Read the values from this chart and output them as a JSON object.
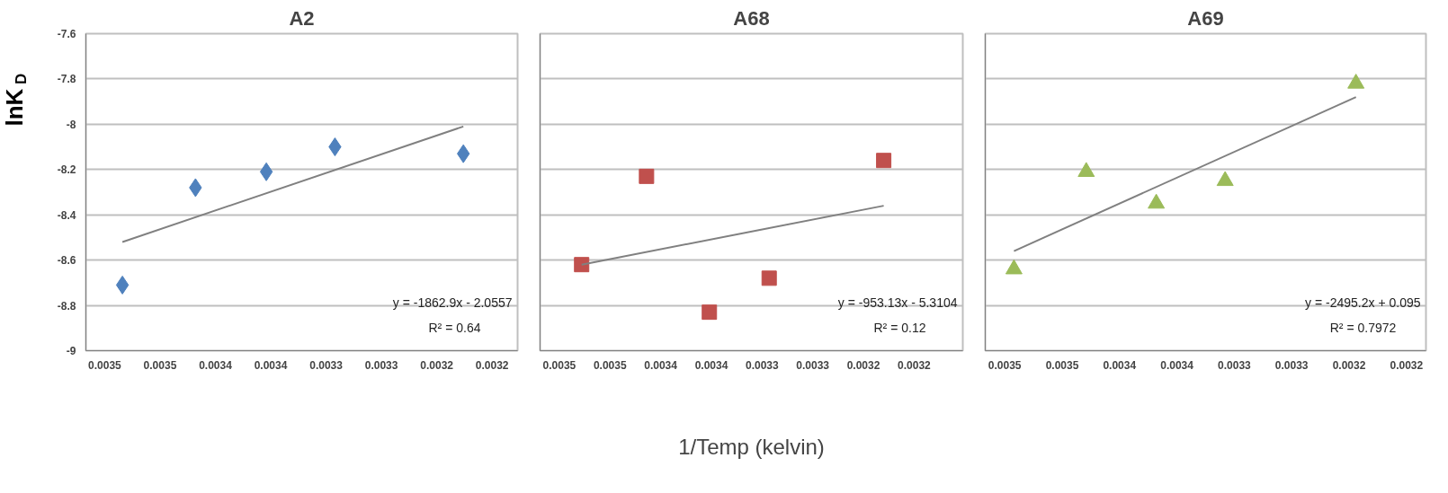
{
  "chart_data": [
    {
      "type": "scatter",
      "title": "A2",
      "ylabel": "lnK$_{D}$",
      "xlim": [
        0.003565,
        0.003175
      ],
      "ylim": [
        -9,
        -7.6
      ],
      "xticks": [
        {
          "value": 0.003548,
          "label": "0.0035"
        },
        {
          "value": 0.003498,
          "label": "0.0035"
        },
        {
          "value": 0.003448,
          "label": "0.0034"
        },
        {
          "value": 0.003398,
          "label": "0.0034"
        },
        {
          "value": 0.003348,
          "label": "0.0033"
        },
        {
          "value": 0.003298,
          "label": "0.0033"
        },
        {
          "value": 0.003248,
          "label": "0.0032"
        },
        {
          "value": 0.003198,
          "label": "0.0032"
        }
      ],
      "yticks": [
        -9,
        -8.8,
        -8.6,
        -8.4,
        -8.2,
        -8,
        -7.8,
        -7.6
      ],
      "grid": "y",
      "series": [
        {
          "marker": "diamond",
          "color": "#4f81bd",
          "x": [
            0.003532,
            0.003466,
            0.003402,
            0.00334,
            0.003224
          ],
          "values": [
            -8.71,
            -8.28,
            -8.21,
            -8.1,
            -8.13
          ]
        },
        {
          "type": "line",
          "line_style": "solid",
          "color": "#808080",
          "x": [
            0.003532,
            0.003224
          ],
          "values": [
            -8.52,
            -8.01
          ]
        }
      ],
      "annotations": [
        "y = -1862.9x - 2.0557",
        "R² = 0.64"
      ]
    },
    {
      "type": "scatter",
      "title": "A68",
      "xlabel": "1/Temp (kelvin)",
      "tick_labels": "x",
      "xlim": [
        0.003567,
        0.00315
      ],
      "ylim": [
        -9,
        -7.6
      ],
      "xticks": [
        {
          "value": 0.003548,
          "label": "0.0035"
        },
        {
          "value": 0.003498,
          "label": "0.0035"
        },
        {
          "value": 0.003448,
          "label": "0.0034"
        },
        {
          "value": 0.003398,
          "label": "0.0034"
        },
        {
          "value": 0.003348,
          "label": "0.0033"
        },
        {
          "value": 0.003298,
          "label": "0.0033"
        },
        {
          "value": 0.003248,
          "label": "0.0032"
        },
        {
          "value": 0.003198,
          "label": "0.0032"
        }
      ],
      "yticks": [
        -9,
        -8.8,
        -8.6,
        -8.4,
        -8.2,
        -8,
        -7.8,
        -7.6
      ],
      "grid": "y",
      "series": [
        {
          "marker": "square",
          "color": "#c0504d",
          "x": [
            0.003526,
            0.003462,
            0.0034,
            0.003341,
            0.003228
          ],
          "values": [
            -8.62,
            -8.23,
            -8.83,
            -8.68,
            -8.16
          ]
        },
        {
          "type": "line",
          "line_style": "solid",
          "color": "#808080",
          "x": [
            0.003526,
            0.003228
          ],
          "values": [
            -8.62,
            -8.36
          ]
        }
      ],
      "annotations": [
        "y = -953.13x - 5.3104",
        "R² = 0.12"
      ]
    },
    {
      "type": "scatter",
      "title": "A69",
      "tick_labels": "x",
      "xlim": [
        0.003565,
        0.003181
      ],
      "ylim": [
        -9,
        -7.6
      ],
      "xticks": [
        {
          "value": 0.003548,
          "label": "0.0035"
        },
        {
          "value": 0.003498,
          "label": "0.0035"
        },
        {
          "value": 0.003448,
          "label": "0.0034"
        },
        {
          "value": 0.003398,
          "label": "0.0034"
        },
        {
          "value": 0.003348,
          "label": "0.0033"
        },
        {
          "value": 0.003298,
          "label": "0.0033"
        },
        {
          "value": 0.003248,
          "label": "0.0032"
        },
        {
          "value": 0.003198,
          "label": "0.0032"
        }
      ],
      "yticks": [
        -9,
        -8.8,
        -8.6,
        -8.4,
        -8.2,
        -8,
        -7.8,
        -7.6
      ],
      "grid": "y",
      "series": [
        {
          "marker": "triangle",
          "color": "#9bbb59",
          "x": [
            0.00354,
            0.003477,
            0.003416,
            0.003356,
            0.003242
          ],
          "values": [
            -8.64,
            -8.21,
            -8.35,
            -8.25,
            -7.82
          ]
        },
        {
          "type": "line",
          "line_style": "solid",
          "color": "#808080",
          "x": [
            0.00354,
            0.003242
          ],
          "values": [
            -8.56,
            -7.88
          ]
        }
      ],
      "annotations": [
        "y = -2495.2x + 0.095",
        "R² = 0.7972"
      ]
    }
  ]
}
